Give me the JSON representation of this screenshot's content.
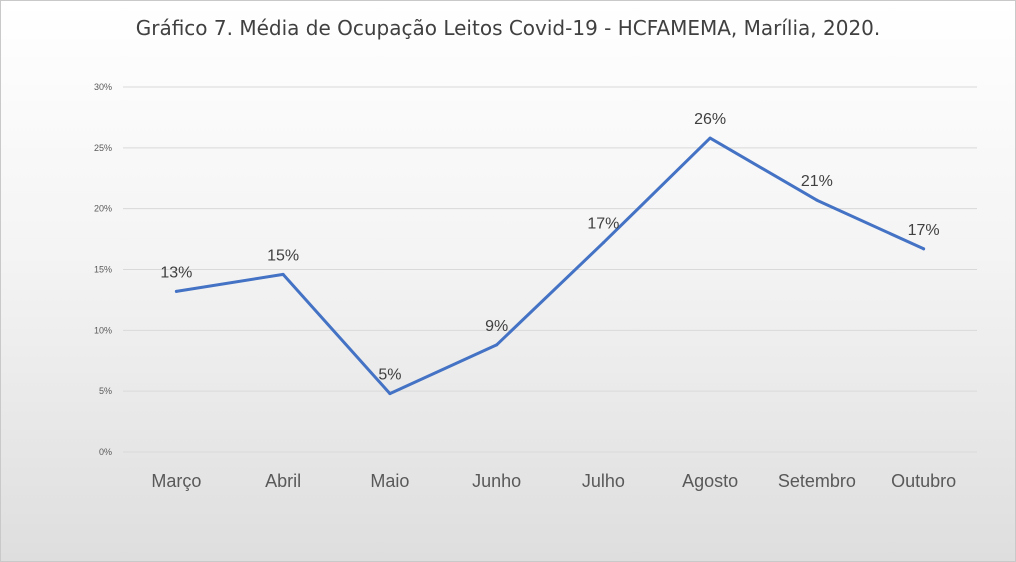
{
  "chart_data": {
    "type": "line",
    "title": "Gráfico 7. Média de Ocupação Leitos Covid-19 - HCFAMEMA, Marília, 2020.",
    "categories": [
      "Março",
      "Abril",
      "Maio",
      "Junho",
      "Julho",
      "Agosto",
      "Setembro",
      "Outubro"
    ],
    "values": [
      13.2,
      14.6,
      4.8,
      8.8,
      17.2,
      25.8,
      20.7,
      16.7
    ],
    "data_labels": [
      "13%",
      "15%",
      "5%",
      "9%",
      "17%",
      "26%",
      "21%",
      "17%"
    ],
    "ylim": [
      0,
      30
    ],
    "yticks": [
      0,
      5,
      10,
      15,
      20,
      25,
      30
    ],
    "ytick_labels": [
      "0%",
      "5%",
      "10%",
      "15%",
      "20%",
      "25%",
      "30%"
    ],
    "grid": true,
    "legend": "none",
    "colors": {
      "line": "#4472c4",
      "grid": "#d9d9d9",
      "text": "#595959"
    }
  }
}
